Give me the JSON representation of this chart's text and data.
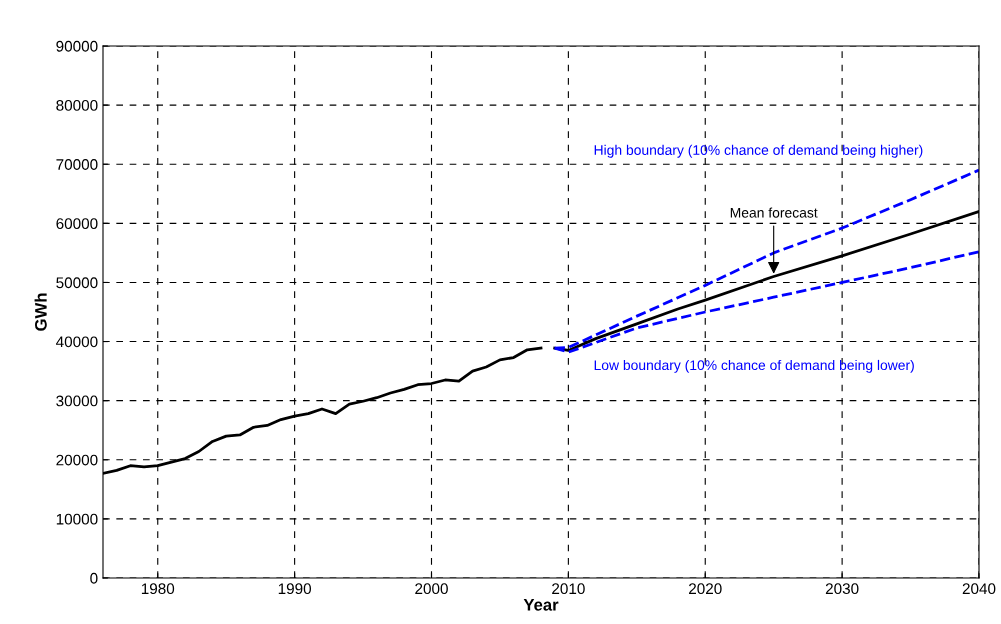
{
  "chart_data": {
    "type": "line",
    "xlabel": "Year",
    "ylabel": "GWh",
    "xlim": [
      1976,
      2040
    ],
    "xticks": [
      1980,
      1990,
      2000,
      2010,
      2020,
      2030,
      2040
    ],
    "ylim": [
      0,
      90000
    ],
    "yticks": [
      0,
      10000,
      20000,
      30000,
      40000,
      50000,
      60000,
      70000,
      80000,
      90000
    ],
    "grid": true,
    "series": [
      {
        "color": "#000000",
        "line_style": "solid",
        "x": [
          1976,
          1977,
          1978,
          1979,
          1980,
          1981,
          1982,
          1983,
          1984,
          1985,
          1986,
          1987,
          1988,
          1989,
          1990,
          1991,
          1992,
          1993,
          1994,
          1995,
          1996,
          1997,
          1998,
          1999,
          2000,
          2001,
          2002,
          2003,
          2004,
          2005,
          2006,
          2007,
          2008
        ],
        "values": [
          17700,
          18200,
          19000,
          18800,
          19000,
          19600,
          20200,
          21400,
          23100,
          24000,
          24200,
          25500,
          25800,
          26800,
          27400,
          27800,
          28600,
          27800,
          29400,
          29900,
          30500,
          31300,
          31900,
          32700,
          32900,
          33500,
          33300,
          35000,
          35700,
          36900,
          37300,
          38600,
          38900
        ]
      },
      {
        "color": "#000000",
        "line_style": "solid",
        "x": [
          2009,
          2010,
          2012,
          2015,
          2018,
          2020,
          2025,
          2030,
          2035,
          2040
        ],
        "values": [
          38900,
          38500,
          40500,
          43000,
          45500,
          47000,
          51000,
          54500,
          58200,
          62000
        ]
      },
      {
        "color": "#0000ff",
        "line_style": "dashed",
        "x": [
          2009,
          2010,
          2015,
          2020,
          2025,
          2030,
          2035,
          2040
        ],
        "values": [
          38900,
          39000,
          44300,
          49500,
          55000,
          59200,
          64000,
          69000
        ]
      },
      {
        "color": "#0000ff",
        "line_style": "dashed",
        "x": [
          2009,
          2010,
          2015,
          2020,
          2025,
          2030,
          2035,
          2040
        ],
        "values": [
          38900,
          38200,
          42300,
          45000,
          47500,
          50000,
          52500,
          55200
        ]
      }
    ],
    "annotations": [
      "High boundary (10% chance of demand being higher)",
      {
        "text": "Mean forecast",
        "x": 2025,
        "y": 51000
      },
      "Low boundary (10% chance of demand being lower)"
    ]
  }
}
